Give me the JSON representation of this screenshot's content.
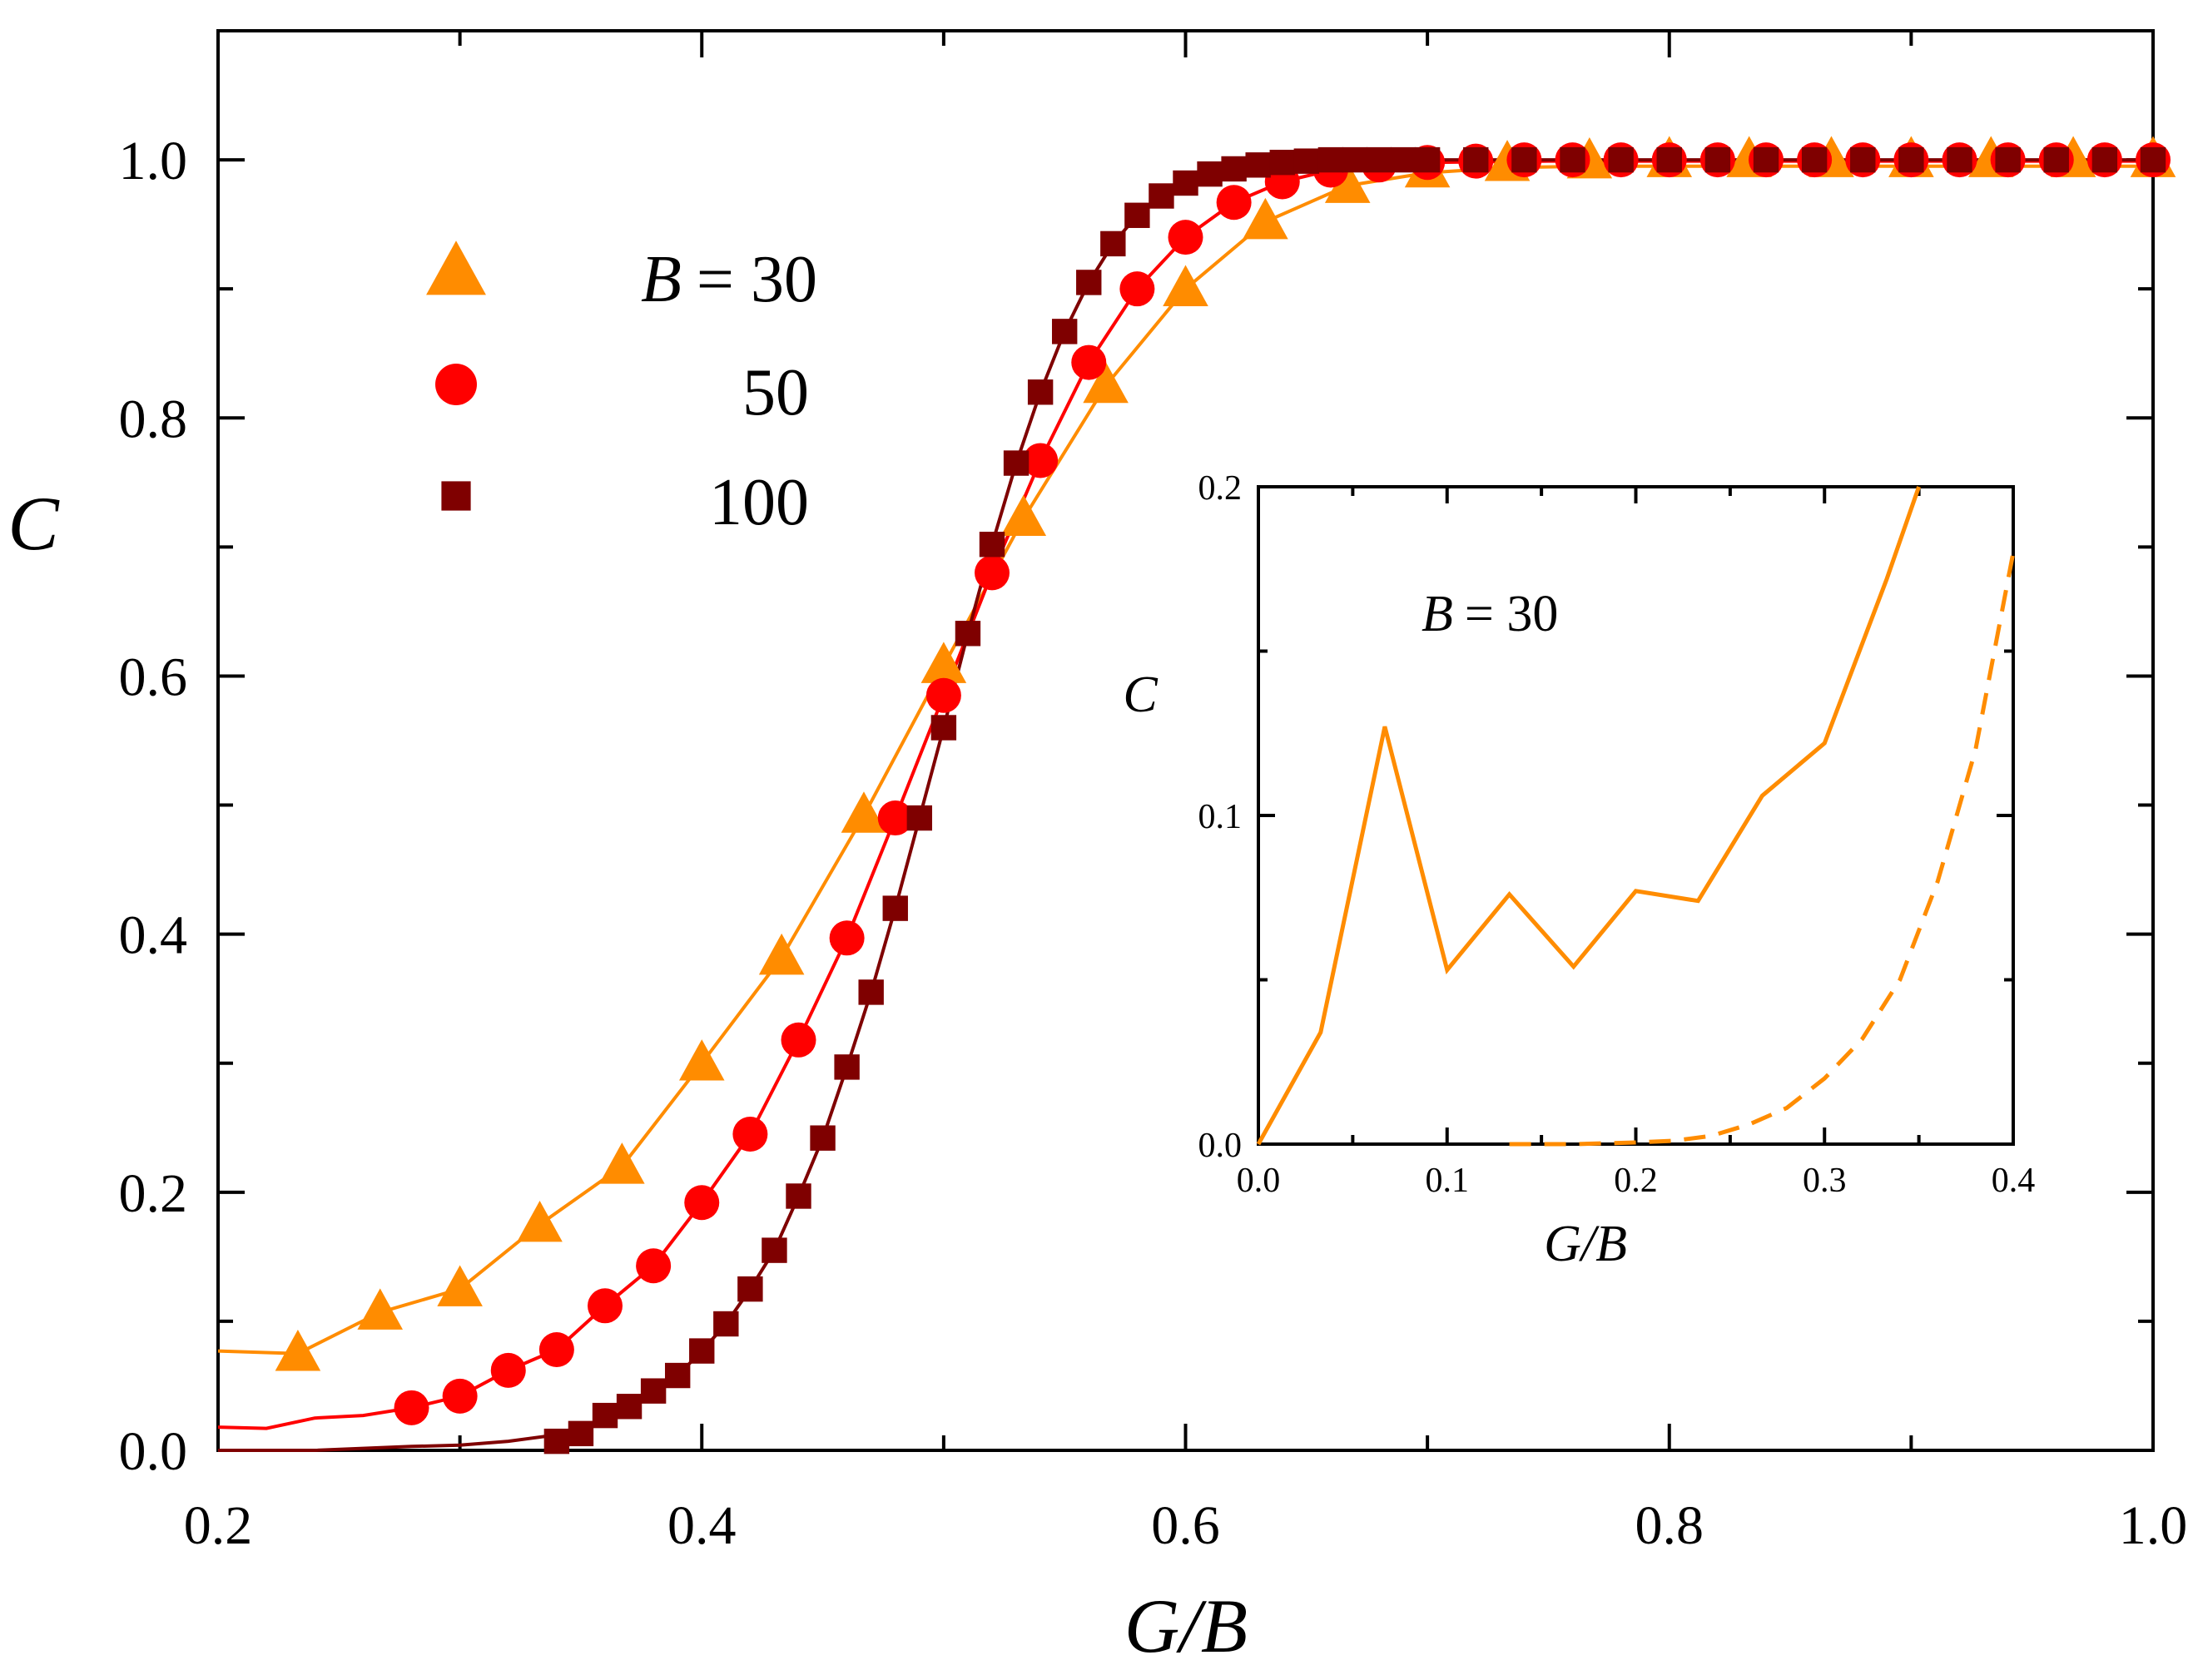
{
  "colors": {
    "b30": "#ff8c00",
    "b50": "#ff0000",
    "b100": "#7f0000"
  },
  "chart_data": [
    {
      "type": "line",
      "title": "",
      "xlabel": "G/B",
      "ylabel": "C",
      "xlim": [
        0.2,
        1.0
      ],
      "ylim": [
        0.0,
        1.1
      ],
      "xticks": [
        "0.2",
        "0.4",
        "0.6",
        "0.8",
        "1.0"
      ],
      "yticks": [
        "0.0",
        "0.2",
        "0.4",
        "0.6",
        "0.8",
        "1.0"
      ],
      "legend": {
        "placement": "top-left",
        "entries": [
          {
            "label": "B = 30",
            "label_prefix": "B",
            "label_value": "= 30",
            "marker": "triangle"
          },
          {
            "label": "50",
            "marker": "circle"
          },
          {
            "label": "100",
            "marker": "square"
          }
        ]
      },
      "series": [
        {
          "name": "B = 30",
          "marker": "triangle",
          "x": [
            0.233,
            0.267,
            0.3,
            0.333,
            0.367,
            0.4,
            0.433,
            0.467,
            0.5,
            0.533,
            0.567,
            0.6,
            0.633,
            0.667,
            0.7,
            0.733,
            0.767,
            0.8,
            0.833,
            0.867,
            0.9,
            0.933,
            0.967,
            1.0
          ],
          "y": [
            0.075,
            0.107,
            0.125,
            0.175,
            0.22,
            0.3,
            0.382,
            0.492,
            0.608,
            0.722,
            0.825,
            0.9,
            0.952,
            0.98,
            0.992,
            0.997,
            0.999,
            1.0,
            1.0,
            1.0,
            1.0,
            1.0,
            1.0,
            1.0
          ],
          "curve_x": [
            0.2,
            0.233,
            0.267,
            0.3,
            0.333,
            0.367,
            0.4,
            0.433,
            0.467,
            0.5,
            0.533,
            0.567,
            0.6,
            0.633,
            0.667,
            0.7,
            0.733,
            0.767,
            0.8,
            0.9,
            1.0
          ],
          "curve_y": [
            0.077,
            0.075,
            0.107,
            0.125,
            0.175,
            0.22,
            0.3,
            0.382,
            0.492,
            0.608,
            0.722,
            0.825,
            0.9,
            0.952,
            0.98,
            0.99,
            0.994,
            0.995,
            0.995,
            0.995,
            0.995
          ]
        },
        {
          "name": "B = 50",
          "marker": "circle",
          "x": [
            0.28,
            0.3,
            0.32,
            0.34,
            0.36,
            0.38,
            0.4,
            0.42,
            0.44,
            0.46,
            0.48,
            0.5,
            0.52,
            0.54,
            0.56,
            0.58,
            0.6,
            0.62,
            0.64,
            0.66,
            0.68,
            0.7,
            0.72,
            0.74,
            0.76,
            0.78,
            0.8,
            0.82,
            0.84,
            0.86,
            0.88,
            0.9,
            0.92,
            0.94,
            0.96,
            0.98,
            1.0
          ],
          "y": [
            0.033,
            0.042,
            0.062,
            0.078,
            0.112,
            0.143,
            0.192,
            0.245,
            0.318,
            0.397,
            0.49,
            0.585,
            0.68,
            0.767,
            0.843,
            0.9,
            0.94,
            0.967,
            0.983,
            0.992,
            0.996,
            0.998,
            0.999,
            1.0,
            1.0,
            1.0,
            1.0,
            1.0,
            1.0,
            1.0,
            1.0,
            1.0,
            1.0,
            1.0,
            1.0,
            1.0,
            1.0
          ],
          "curve_x": [
            0.2,
            0.22,
            0.24,
            0.26,
            0.28,
            0.3,
            0.32,
            0.34,
            0.36,
            0.38,
            0.4,
            0.42,
            0.44,
            0.46,
            0.48,
            0.5,
            0.52,
            0.54,
            0.56,
            0.58,
            0.6,
            0.62,
            0.64,
            0.66,
            0.68,
            0.7,
            0.75,
            0.8,
            0.9,
            1.0
          ],
          "curve_y": [
            0.018,
            0.017,
            0.025,
            0.027,
            0.033,
            0.042,
            0.062,
            0.078,
            0.112,
            0.143,
            0.192,
            0.245,
            0.318,
            0.397,
            0.49,
            0.585,
            0.68,
            0.767,
            0.843,
            0.9,
            0.94,
            0.967,
            0.983,
            0.992,
            0.996,
            0.998,
            0.999,
            0.999,
            0.999,
            0.999
          ]
        },
        {
          "name": "B = 100",
          "marker": "square",
          "x": [
            0.34,
            0.35,
            0.36,
            0.37,
            0.38,
            0.39,
            0.4,
            0.41,
            0.42,
            0.43,
            0.44,
            0.45,
            0.46,
            0.47,
            0.48,
            0.49,
            0.5,
            0.51,
            0.52,
            0.53,
            0.54,
            0.55,
            0.56,
            0.57,
            0.58,
            0.59,
            0.6,
            0.61,
            0.62,
            0.63,
            0.64,
            0.65,
            0.66,
            0.67,
            0.68,
            0.69,
            0.7,
            0.72,
            0.74,
            0.76,
            0.78,
            0.8,
            0.82,
            0.84,
            0.86,
            0.88,
            0.9,
            0.92,
            0.94,
            0.96,
            0.98,
            1.0
          ],
          "y": [
            0.007,
            0.013,
            0.027,
            0.034,
            0.046,
            0.058,
            0.077,
            0.098,
            0.125,
            0.155,
            0.197,
            0.242,
            0.297,
            0.355,
            0.42,
            0.49,
            0.56,
            0.633,
            0.702,
            0.765,
            0.82,
            0.867,
            0.905,
            0.935,
            0.957,
            0.972,
            0.982,
            0.989,
            0.993,
            0.996,
            0.998,
            0.999,
            1.0,
            1.0,
            1.0,
            1.0,
            1.0,
            1.0,
            1.0,
            1.0,
            1.0,
            1.0,
            1.0,
            1.0,
            1.0,
            1.0,
            1.0,
            1.0,
            1.0,
            1.0,
            1.0,
            1.0
          ],
          "curve_x": [
            0.2,
            0.24,
            0.28,
            0.3,
            0.32,
            0.34,
            0.35,
            0.36,
            0.37,
            0.38,
            0.39,
            0.4,
            0.41,
            0.42,
            0.43,
            0.44,
            0.45,
            0.46,
            0.47,
            0.48,
            0.49,
            0.5,
            0.51,
            0.52,
            0.53,
            0.54,
            0.55,
            0.56,
            0.57,
            0.58,
            0.59,
            0.6,
            0.61,
            0.62,
            0.63,
            0.64,
            0.65,
            0.66,
            0.68,
            0.7,
            0.8,
            0.9,
            1.0
          ],
          "curve_y": [
            0.0,
            0.0,
            0.003,
            0.004,
            0.007,
            0.012,
            0.016,
            0.024,
            0.033,
            0.045,
            0.058,
            0.077,
            0.098,
            0.125,
            0.155,
            0.197,
            0.242,
            0.297,
            0.355,
            0.42,
            0.49,
            0.56,
            0.633,
            0.702,
            0.765,
            0.82,
            0.867,
            0.905,
            0.935,
            0.957,
            0.972,
            0.982,
            0.989,
            0.993,
            0.996,
            0.998,
            0.999,
            1.0,
            1.0,
            1.0,
            1.0,
            1.0,
            1.0
          ]
        }
      ]
    },
    {
      "type": "line",
      "title": "",
      "xlabel": "G/B",
      "ylabel": "C",
      "xlim": [
        0.0,
        0.4
      ],
      "ylim": [
        0.0,
        0.2
      ],
      "xticks": [
        "0.0",
        "0.1",
        "0.2",
        "0.3",
        "0.4"
      ],
      "yticks": [
        "0.0",
        "0.1",
        "0.2"
      ],
      "annotation": {
        "prefix": "B",
        "value": "= 30",
        "text": "B = 30"
      },
      "series": [
        {
          "name": "B = 30 (solid)",
          "style": "solid",
          "x": [
            0.0,
            0.033,
            0.067,
            0.1,
            0.133,
            0.167,
            0.2,
            0.233,
            0.267,
            0.3,
            0.333,
            0.35
          ],
          "y": [
            0.0,
            0.034,
            0.127,
            0.053,
            0.076,
            0.054,
            0.077,
            0.074,
            0.106,
            0.122,
            0.172,
            0.2
          ]
        },
        {
          "name": "B = 30 (dashed)",
          "style": "dashed",
          "x": [
            0.133,
            0.167,
            0.2,
            0.22,
            0.24,
            0.26,
            0.28,
            0.3,
            0.32,
            0.34,
            0.36,
            0.38,
            0.4
          ],
          "y": [
            0.0,
            0.0,
            0.0005,
            0.001,
            0.0025,
            0.006,
            0.011,
            0.02,
            0.032,
            0.05,
            0.08,
            0.12,
            0.18
          ]
        }
      ]
    }
  ]
}
